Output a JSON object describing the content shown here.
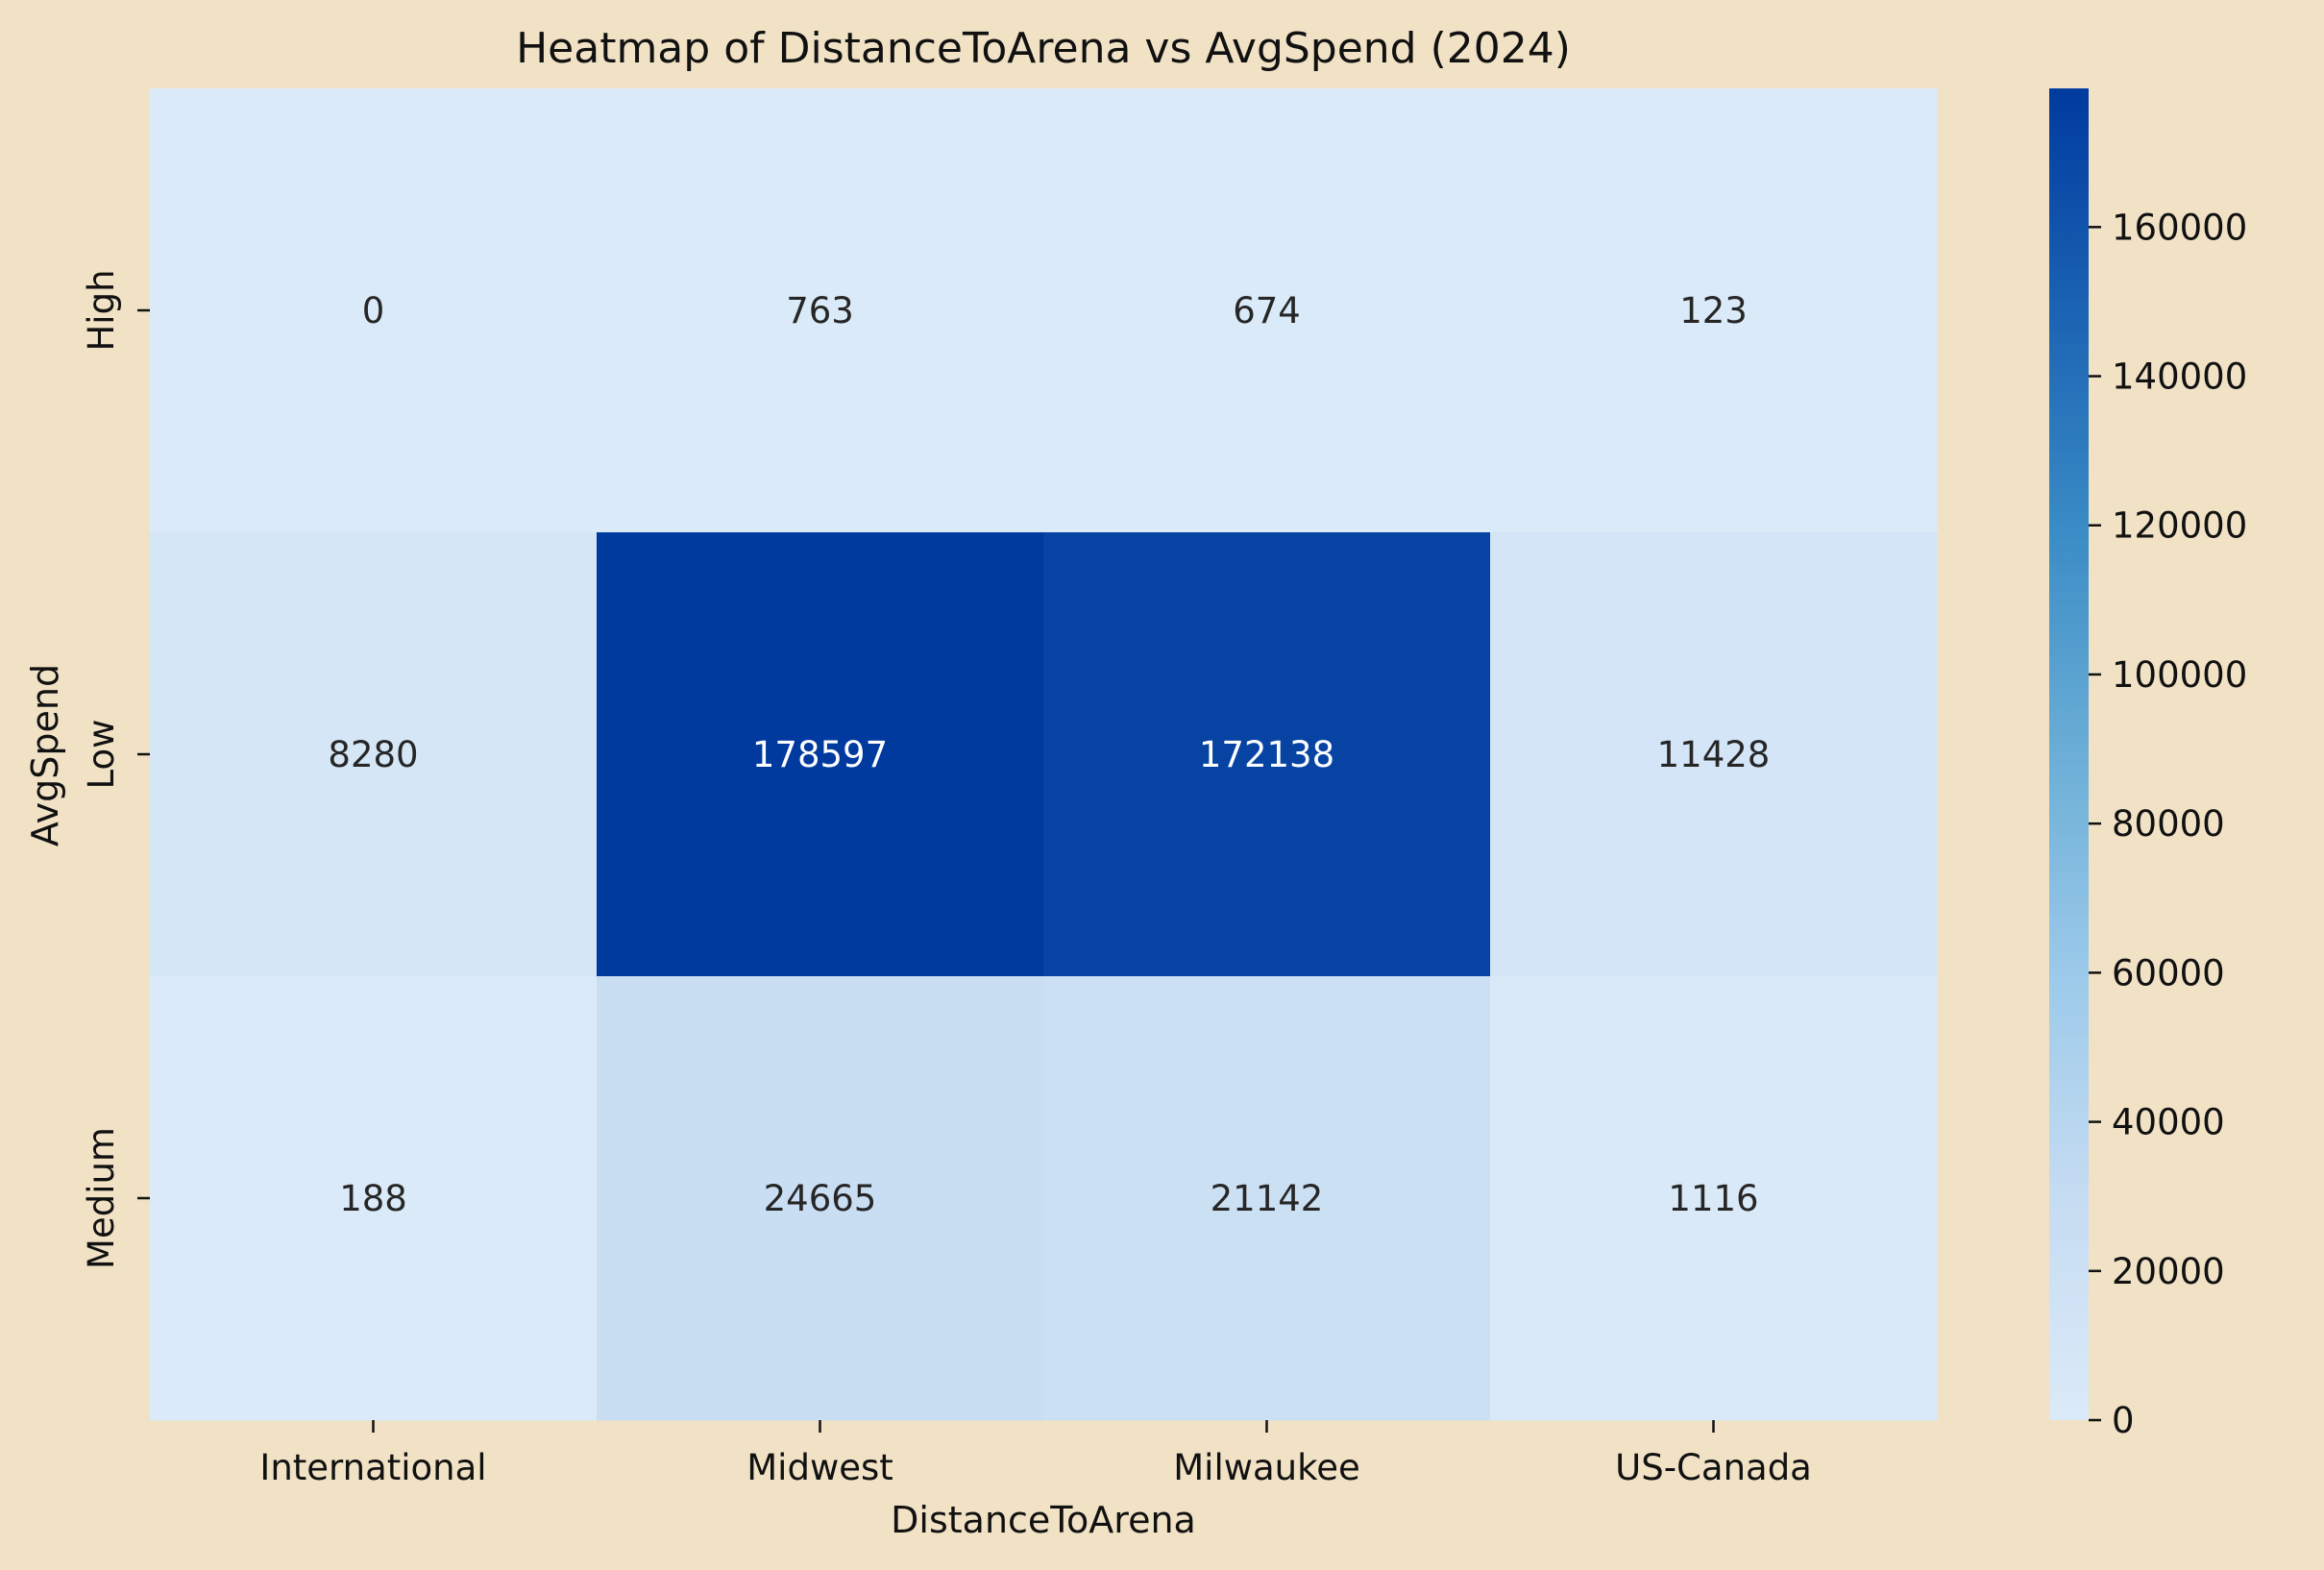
{
  "chart_data": {
    "type": "heatmap",
    "title": "Heatmap of DistanceToArena vs AvgSpend (2024)",
    "xlabel": "DistanceToArena",
    "ylabel": "AvgSpend",
    "x_categories": [
      "International",
      "Midwest",
      "Milwaukee",
      "US-Canada"
    ],
    "y_categories": [
      "High",
      "Low",
      "Medium"
    ],
    "values": [
      [
        0,
        763,
        674,
        123
      ],
      [
        8280,
        178597,
        172138,
        11428
      ],
      [
        188,
        24665,
        21142,
        1116
      ]
    ],
    "colorbar": {
      "min": 0,
      "max": 178597,
      "ticks": [
        0,
        20000,
        40000,
        60000,
        80000,
        100000,
        120000,
        140000,
        160000
      ],
      "colormap": "Blues",
      "colors": [
        "#dbeaf8",
        "#c6dcf2",
        "#9ccaea",
        "#6baed6",
        "#3a8cc6",
        "#1b63b3",
        "#003a9f"
      ]
    },
    "background": "#f1e2c6"
  }
}
